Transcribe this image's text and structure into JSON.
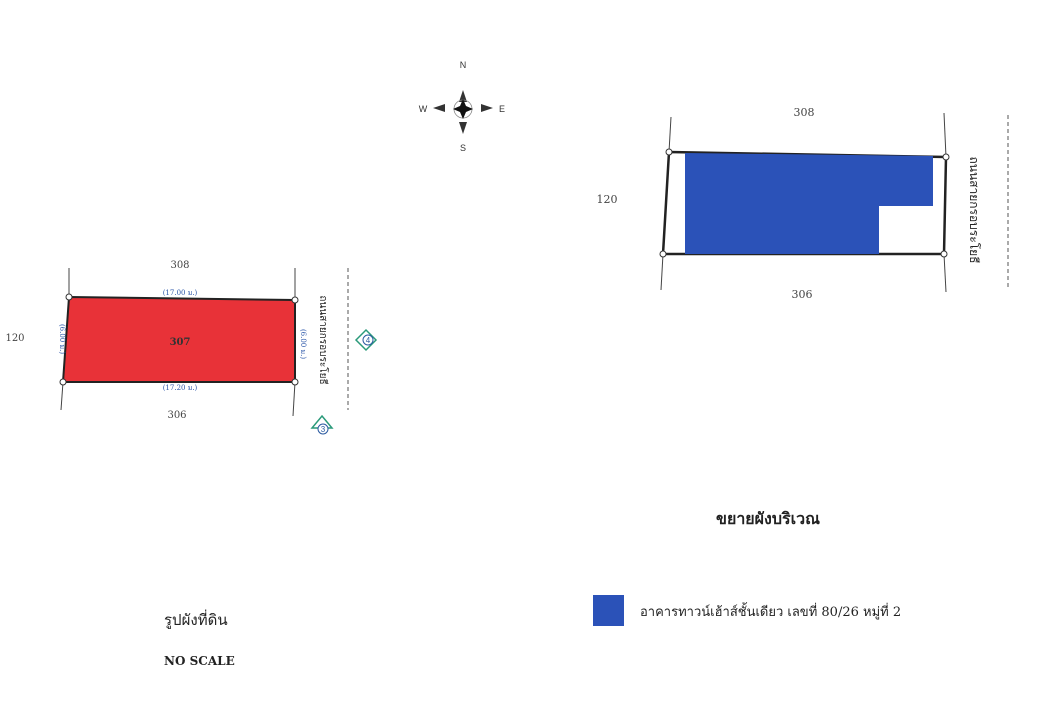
{
  "compass": {
    "n": "N",
    "s": "S",
    "e": "E",
    "w": "W"
  },
  "land_plan": {
    "parcel_number": "307",
    "top_neighbor": "308",
    "bottom_neighbor": "306",
    "left_neighbor": "120",
    "dim_top": "(17.00 ม.)",
    "dim_bottom": "(17.20 ม.)",
    "dim_left": "(6.00 ม.)",
    "dim_right": "(6.00 ม.)",
    "road_name": "ถนนสายกรอบระโยธี",
    "marker_a": "4",
    "marker_b": "3",
    "fill_color": "#e83238",
    "title": "รูปผังที่ดิน",
    "scale_note": "NO SCALE"
  },
  "site_plan": {
    "top_neighbor": "308",
    "bottom_neighbor": "306",
    "left_neighbor": "120",
    "road_name": "ถนนสายกรอบระโยธี",
    "building_color": "#2b52b8",
    "title": "ขยายผังบริเวณ"
  },
  "legend": {
    "color": "#2b52b8",
    "label": "อาคารทาวน์เฮ้าส์ชั้นเดียว เลขที่ 80/26 หมู่ที่ 2"
  }
}
